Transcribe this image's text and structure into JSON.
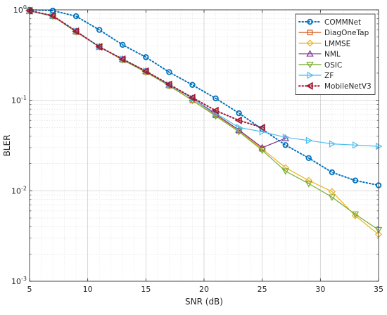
{
  "chart_data": {
    "type": "line",
    "title": "",
    "xlabel": "SNR (dB)",
    "ylabel": "BLER",
    "xlim": [
      5,
      35
    ],
    "ylim": [
      0.001,
      1
    ],
    "yscale": "log",
    "grid": true,
    "minor_grid": true,
    "legend_position": "top-right",
    "x_ticks": [
      5,
      10,
      15,
      20,
      25,
      30,
      35
    ],
    "x_tick_labels": [
      "5",
      "10",
      "15",
      "20",
      "25",
      "30",
      "35"
    ],
    "y_ticks": [
      0.001,
      0.01,
      0.1,
      1
    ],
    "y_tick_labels": [
      {
        "base": "10",
        "exp": "-3"
      },
      {
        "base": "10",
        "exp": "-2"
      },
      {
        "base": "10",
        "exp": "-1"
      },
      {
        "base": "10",
        "exp": "0"
      }
    ],
    "series": [
      {
        "name": "COMMNet",
        "color": "#0072BD",
        "line_style": "dotted",
        "marker": "circle",
        "x": [
          5,
          7,
          9,
          11,
          13,
          15,
          17,
          19,
          21,
          23,
          25,
          27,
          29,
          31,
          33,
          35
        ],
        "y": [
          1.0,
          0.98,
          0.85,
          0.6,
          0.41,
          0.3,
          0.205,
          0.148,
          0.105,
          0.072,
          0.048,
          0.032,
          0.023,
          0.016,
          0.013,
          0.0115
        ]
      },
      {
        "name": "DiagOneTap",
        "color": "#D95319",
        "line_style": "solid",
        "marker": "square",
        "x": [
          5,
          7,
          9,
          11,
          13,
          15,
          17,
          19,
          21,
          23,
          25
        ],
        "y": [
          0.97,
          0.85,
          0.57,
          0.39,
          0.28,
          0.205,
          0.145,
          0.1,
          0.068,
          0.046,
          0.029
        ]
      },
      {
        "name": "LMMSE",
        "color": "#EDB120",
        "line_style": "solid",
        "marker": "diamond",
        "x": [
          5,
          7,
          9,
          11,
          13,
          15,
          17,
          19,
          21,
          23,
          25,
          27,
          29,
          31,
          33,
          35
        ],
        "y": [
          0.97,
          0.85,
          0.57,
          0.39,
          0.28,
          0.205,
          0.145,
          0.1,
          0.068,
          0.046,
          0.029,
          0.018,
          0.013,
          0.0098,
          0.0053,
          0.0033
        ]
      },
      {
        "name": "NML",
        "color": "#7E2F8E",
        "line_style": "solid",
        "marker": "triangle-up",
        "x": [
          5,
          7,
          9,
          11,
          13,
          15,
          17,
          19,
          21,
          23,
          25,
          27
        ],
        "y": [
          0.97,
          0.86,
          0.58,
          0.39,
          0.285,
          0.21,
          0.148,
          0.105,
          0.07,
          0.047,
          0.03,
          0.038
        ]
      },
      {
        "name": "OSIC",
        "color": "#77AC30",
        "line_style": "solid",
        "marker": "triangle-down",
        "x": [
          5,
          7,
          9,
          11,
          13,
          15,
          17,
          19,
          21,
          23,
          25,
          27,
          29,
          31,
          33,
          35
        ],
        "y": [
          0.97,
          0.85,
          0.57,
          0.39,
          0.28,
          0.205,
          0.145,
          0.1,
          0.067,
          0.045,
          0.028,
          0.0165,
          0.012,
          0.0085,
          0.0055,
          0.0037
        ]
      },
      {
        "name": "ZF",
        "color": "#4DBEEE",
        "line_style": "solid",
        "marker": "triangle-right",
        "x": [
          5,
          7,
          9,
          11,
          13,
          15,
          17,
          19,
          21,
          23,
          25,
          27,
          29,
          31,
          33,
          35
        ],
        "y": [
          0.97,
          0.86,
          0.58,
          0.39,
          0.285,
          0.21,
          0.148,
          0.105,
          0.072,
          0.05,
          0.045,
          0.039,
          0.036,
          0.033,
          0.032,
          0.031
        ]
      },
      {
        "name": "MobileNetV3",
        "color": "#A2142F",
        "line_style": "dotted",
        "marker": "triangle-left",
        "x": [
          5,
          7,
          9,
          11,
          13,
          15,
          17,
          19,
          21,
          23,
          25
        ],
        "y": [
          0.98,
          0.86,
          0.58,
          0.39,
          0.285,
          0.21,
          0.15,
          0.107,
          0.077,
          0.06,
          0.05
        ]
      }
    ]
  }
}
